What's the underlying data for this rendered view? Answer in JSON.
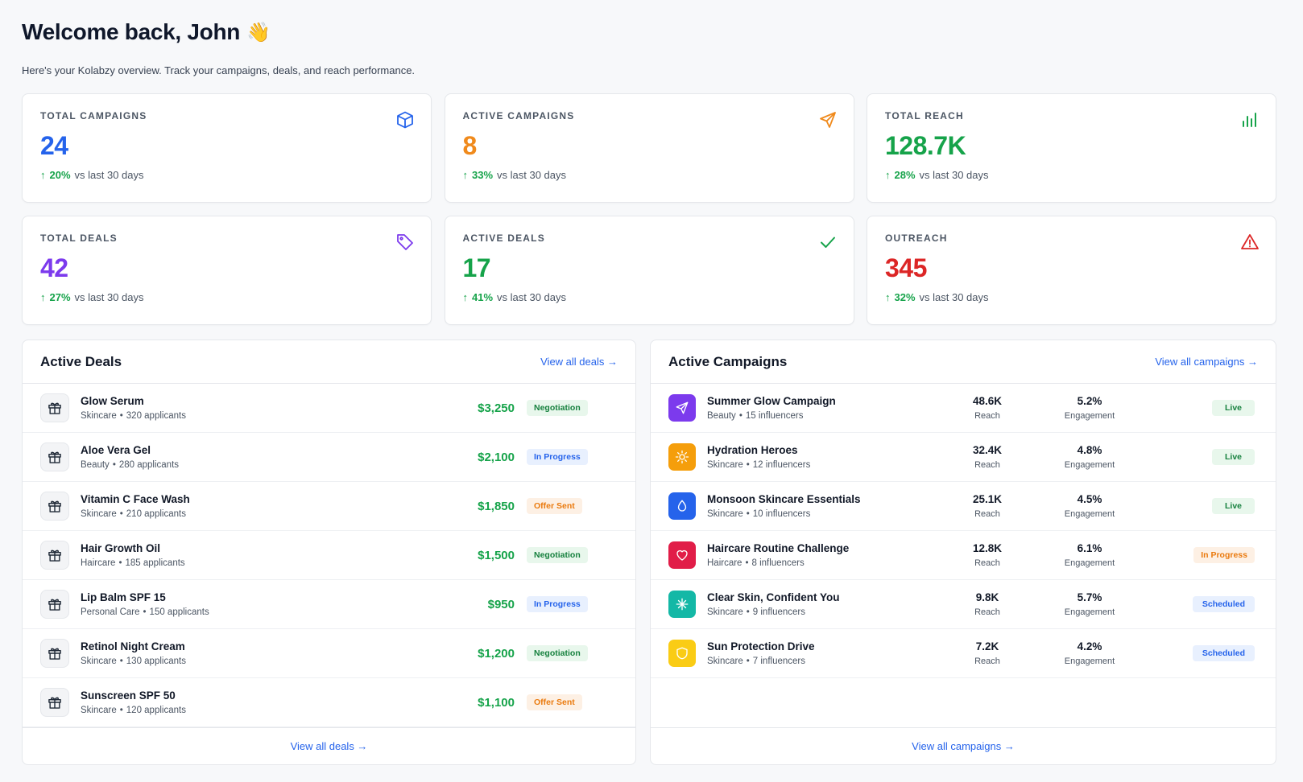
{
  "header": {
    "greeting": "Welcome back, John",
    "wave": "👋",
    "subtitle": "Here's your Kolabzy overview. Track your campaigns, deals, and reach performance."
  },
  "stats": [
    {
      "label": "TOTAL CAMPAIGNS",
      "value": "24",
      "pct": "20%",
      "suffix": "vs last 30 days",
      "color": "#2563eb",
      "icon": "cube-icon"
    },
    {
      "label": "ACTIVE CAMPAIGNS",
      "value": "8",
      "pct": "33%",
      "suffix": "vs last 30 days",
      "color": "#f08a1c",
      "icon": "send-icon"
    },
    {
      "label": "TOTAL REACH",
      "value": "128.7K",
      "pct": "28%",
      "suffix": "vs last 30 days",
      "color": "#16a34a",
      "icon": "bar-chart-icon"
    },
    {
      "label": "TOTAL DEALS",
      "value": "42",
      "pct": "27%",
      "suffix": "vs last 30 days",
      "color": "#7c3aed",
      "icon": "tag-icon"
    },
    {
      "label": "ACTIVE DEALS",
      "value": "17",
      "pct": "41%",
      "suffix": "vs last 30 days",
      "color": "#16a34a",
      "icon": "check-icon"
    },
    {
      "label": "OUTREACH",
      "value": "345",
      "pct": "32%",
      "suffix": "vs last 30 days",
      "color": "#dc2626",
      "icon": "warning-icon"
    }
  ],
  "deals": {
    "title": "Active Deals",
    "view_all_top": "View all deals →",
    "view_all_bottom": "View all deals →",
    "rows": [
      {
        "name": "Glow Serum",
        "category": "Skincare",
        "applicants": "320 applicants",
        "amount": "$3,250",
        "status": "Negotiation"
      },
      {
        "name": "Aloe Vera Gel",
        "category": "Beauty",
        "applicants": "280 applicants",
        "amount": "$2,100",
        "status": "In Progress"
      },
      {
        "name": "Vitamin C Face Wash",
        "category": "Skincare",
        "applicants": "210 applicants",
        "amount": "$1,850",
        "status": "Offer Sent"
      },
      {
        "name": "Hair Growth Oil",
        "category": "Haircare",
        "applicants": "185 applicants",
        "amount": "$1,500",
        "status": "Negotiation"
      },
      {
        "name": "Lip Balm SPF 15",
        "category": "Personal Care",
        "applicants": "150 applicants",
        "amount": "$950",
        "status": "In Progress"
      },
      {
        "name": "Retinol Night Cream",
        "category": "Skincare",
        "applicants": "130 applicants",
        "amount": "$1,200",
        "status": "Negotiation"
      },
      {
        "name": "Sunscreen SPF 50",
        "category": "Skincare",
        "applicants": "120 applicants",
        "amount": "$1,100",
        "status": "Offer Sent"
      }
    ]
  },
  "campaigns": {
    "title": "Active Campaigns",
    "view_all_top": "View all campaigns →",
    "view_all_bottom": "View all campaigns →",
    "reach_label": "Reach",
    "engagement_label": "Engagement",
    "rows": [
      {
        "name": "Summer Glow Campaign",
        "category": "Beauty",
        "influencers": "15 influencers",
        "reach": "48.6K",
        "engagement": "5.2%",
        "status": "Live",
        "icon": "send-icon",
        "color": "#7c3aed"
      },
      {
        "name": "Hydration Heroes",
        "category": "Skincare",
        "influencers": "12 influencers",
        "reach": "32.4K",
        "engagement": "4.8%",
        "status": "Live",
        "icon": "sun-icon",
        "color": "#f59e0b"
      },
      {
        "name": "Monsoon Skincare Essentials",
        "category": "Skincare",
        "influencers": "10 influencers",
        "reach": "25.1K",
        "engagement": "4.5%",
        "status": "Live",
        "icon": "droplet-icon",
        "color": "#2563eb"
      },
      {
        "name": "Haircare Routine Challenge",
        "category": "Haircare",
        "influencers": "8 influencers",
        "reach": "12.8K",
        "engagement": "6.1%",
        "status": "In Progress",
        "icon": "heart-icon",
        "color": "#e11d48"
      },
      {
        "name": "Clear Skin, Confident You",
        "category": "Skincare",
        "influencers": "9 influencers",
        "reach": "9.8K",
        "engagement": "5.7%",
        "status": "Scheduled",
        "icon": "sparkle-icon",
        "color": "#14b8a6"
      },
      {
        "name": "Sun Protection Drive",
        "category": "Skincare",
        "influencers": "7 influencers",
        "reach": "7.2K",
        "engagement": "4.2%",
        "status": "Scheduled",
        "icon": "shield-icon",
        "color": "#facc15"
      }
    ]
  }
}
